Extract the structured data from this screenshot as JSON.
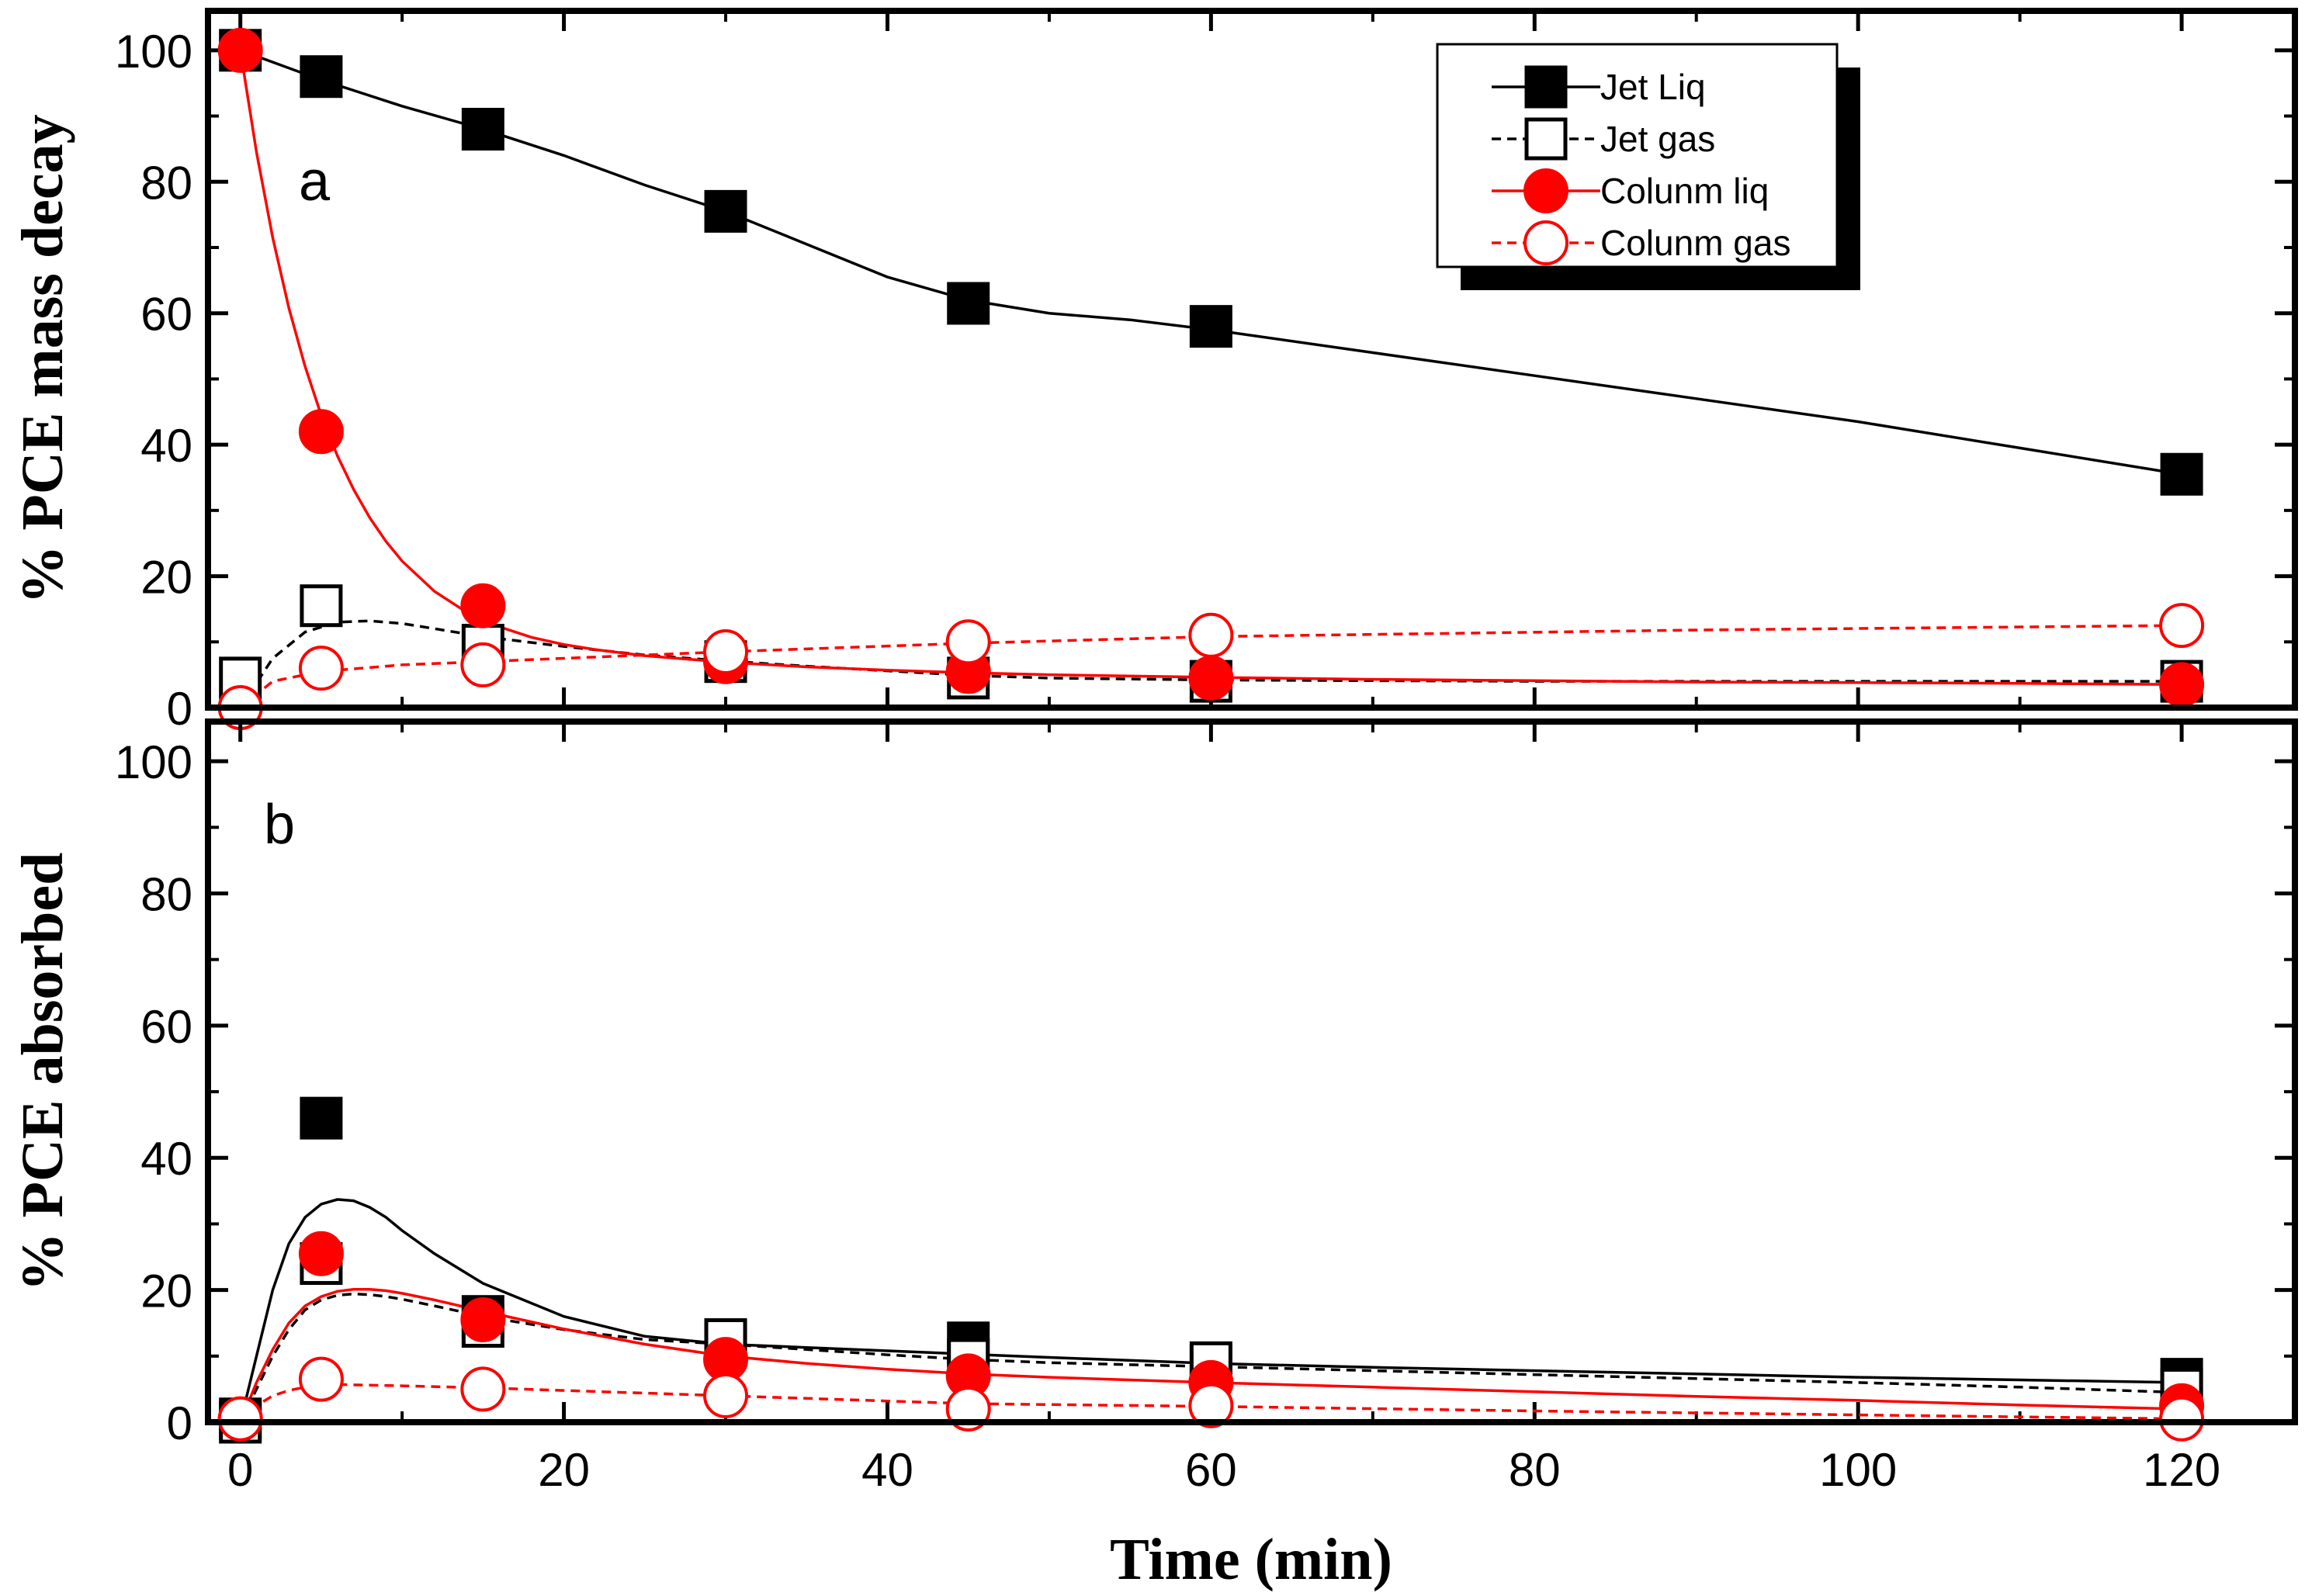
{
  "chart_data": [
    {
      "panel": "a",
      "type": "scatter",
      "panel_label": "a",
      "ylabel": "% PCE mass decay",
      "xlabel": "Time (min)",
      "xlim": [
        -2,
        127
      ],
      "ylim": [
        0,
        106
      ],
      "xticks": [
        0,
        20,
        40,
        60,
        80,
        100,
        120
      ],
      "yticks": [
        0,
        20,
        40,
        60,
        80,
        100
      ],
      "legend": {
        "placement": "top-right",
        "entries": [
          "Jet Liq",
          "Jet gas",
          "Colunm liq",
          "Colunm gas"
        ]
      },
      "series": [
        {
          "name": "Jet Liq",
          "color": "#000000",
          "marker": "square-filled",
          "line": "solid",
          "x": [
            0,
            5,
            15,
            30,
            45,
            60,
            120
          ],
          "y": [
            100,
            96,
            88,
            75.5,
            61.5,
            58,
            35.5
          ],
          "fit_x": [
            0,
            5,
            10,
            15,
            20,
            25,
            30,
            35,
            40,
            45,
            50,
            55,
            60,
            70,
            80,
            90,
            100,
            110,
            120
          ],
          "fit_y": [
            100,
            95.5,
            91.5,
            88,
            84,
            79.5,
            75.5,
            70.5,
            65.5,
            62,
            60,
            59,
            57.5,
            54,
            50.5,
            47,
            43.5,
            39.5,
            35.5
          ]
        },
        {
          "name": "Jet gas",
          "color": "#000000",
          "marker": "square-open",
          "line": "dashed",
          "x": [
            0,
            5,
            15,
            30,
            45,
            60,
            120
          ],
          "y": [
            4.5,
            15.5,
            9.5,
            7,
            4.5,
            4,
            4
          ],
          "fit_x": [
            0,
            2,
            4,
            6,
            8,
            10,
            12,
            15,
            20,
            25,
            30,
            35,
            40,
            45,
            50,
            60,
            70,
            80,
            90,
            100,
            110,
            120
          ],
          "fit_y": [
            0,
            7.5,
            11.5,
            13,
            13.2,
            12.8,
            12,
            10.8,
            9.3,
            8,
            7.1,
            6.3,
            5.6,
            4.9,
            4.5,
            4.2,
            4.1,
            4,
            4,
            4,
            4,
            4
          ]
        },
        {
          "name": "Colunm liq",
          "color": "#ff0000",
          "marker": "circle-filled",
          "line": "solid",
          "x": [
            0,
            5,
            15,
            30,
            45,
            60,
            120
          ],
          "y": [
            100,
            42,
            15.5,
            7,
            5.5,
            4.5,
            3.5
          ],
          "fit_x": [
            0,
            1,
            2,
            3,
            4,
            5,
            6,
            7,
            8,
            9,
            10,
            12,
            14,
            16,
            18,
            20,
            22,
            25,
            30,
            35,
            40,
            45,
            50,
            60,
            70,
            80,
            90,
            100,
            110,
            120
          ],
          "fit_y": [
            100,
            84.5,
            71.5,
            60.8,
            51.9,
            44.5,
            38.3,
            33.2,
            28.9,
            25.3,
            22.3,
            17.7,
            14.5,
            12.3,
            10.7,
            9.6,
            8.8,
            7.9,
            6.9,
            6.2,
            5.7,
            5.3,
            5,
            4.6,
            4.3,
            4.1,
            3.9,
            3.8,
            3.7,
            3.5
          ]
        },
        {
          "name": "Colunm gas",
          "color": "#ff0000",
          "marker": "circle-open",
          "line": "dashed",
          "x": [
            0,
            5,
            15,
            30,
            45,
            60,
            120
          ],
          "y": [
            0,
            6,
            6.5,
            8.5,
            10,
            11,
            12.5
          ],
          "fit_x": [
            0,
            2,
            5,
            10,
            15,
            20,
            30,
            45,
            60,
            90,
            120
          ],
          "fit_y": [
            0,
            4,
            5.5,
            6.5,
            7,
            7.5,
            8.5,
            9.8,
            10.8,
            11.8,
            12.5
          ]
        }
      ]
    },
    {
      "panel": "b",
      "type": "scatter",
      "panel_label": "b",
      "ylabel": "% PCE absorbed",
      "xlabel": "Time (min)",
      "xlim": [
        -2,
        127
      ],
      "ylim": [
        0,
        106
      ],
      "xticks": [
        0,
        20,
        40,
        60,
        80,
        100,
        120
      ],
      "yticks": [
        0,
        20,
        40,
        60,
        80,
        100
      ],
      "series": [
        {
          "name": "Jet Liq",
          "color": "#000000",
          "marker": "square-filled",
          "line": "solid",
          "x": [
            0,
            5,
            15,
            30,
            45,
            60,
            120
          ],
          "y": [
            0.5,
            46,
            16,
            12,
            12,
            8.5,
            6.5
          ],
          "fit_x": [
            0,
            1,
            2,
            3,
            4,
            5,
            6,
            7,
            8,
            9,
            10,
            12,
            15,
            20,
            25,
            30,
            35,
            40,
            45,
            50,
            60,
            70,
            80,
            90,
            100,
            110,
            120
          ],
          "fit_y": [
            0,
            10,
            20,
            27,
            31,
            33,
            33.7,
            33.5,
            32.5,
            31,
            29,
            25.5,
            21,
            16,
            13,
            11.8,
            11.3,
            10.8,
            10.3,
            9.8,
            8.9,
            8.3,
            7.8,
            7.3,
            6.8,
            6.4,
            6
          ]
        },
        {
          "name": "Jet gas",
          "color": "#000000",
          "marker": "square-open",
          "line": "dashed",
          "x": [
            0,
            5,
            15,
            30,
            45,
            60,
            120
          ],
          "y": [
            0,
            24,
            14.5,
            12.5,
            9.5,
            9,
            5
          ],
          "fit_x": [
            0,
            1,
            2,
            3,
            4,
            5,
            6,
            7,
            8,
            9,
            10,
            12,
            15,
            20,
            25,
            30,
            35,
            40,
            45,
            50,
            60,
            70,
            80,
            90,
            100,
            110,
            120
          ],
          "fit_y": [
            0,
            5,
            10,
            14,
            17,
            18.5,
            19.2,
            19.4,
            19.3,
            19,
            18.6,
            17.6,
            16,
            14,
            12.5,
            11.8,
            11,
            10.2,
            9.5,
            9,
            8.4,
            7.8,
            7.2,
            6.6,
            6,
            5.3,
            4.5
          ]
        },
        {
          "name": "Colunm liq",
          "color": "#ff0000",
          "marker": "circle-filled",
          "line": "solid",
          "x": [
            0,
            5,
            15,
            30,
            45,
            60,
            120
          ],
          "y": [
            0.5,
            25.5,
            15.5,
            9.5,
            7,
            6,
            2.5
          ],
          "fit_x": [
            0,
            1,
            2,
            3,
            4,
            5,
            6,
            7,
            8,
            9,
            10,
            12,
            15,
            20,
            25,
            30,
            35,
            40,
            45,
            50,
            60,
            70,
            80,
            90,
            100,
            110,
            120
          ],
          "fit_y": [
            0,
            6,
            11,
            15,
            17.6,
            19,
            19.8,
            20.1,
            20.1,
            19.9,
            19.5,
            18.5,
            16.8,
            14.1,
            11.8,
            10,
            8.9,
            8,
            7.3,
            6.8,
            6,
            5.3,
            4.6,
            3.9,
            3.3,
            2.6,
            2
          ]
        },
        {
          "name": "Colunm gas",
          "color": "#ff0000",
          "marker": "circle-open",
          "line": "dashed",
          "x": [
            0,
            5,
            15,
            30,
            45,
            60,
            120
          ],
          "y": [
            0.5,
            6.5,
            5,
            4,
            2,
            2.5,
            0.5
          ],
          "fit_x": [
            0,
            1,
            2,
            3,
            4,
            5,
            6,
            8,
            10,
            15,
            20,
            30,
            40,
            45,
            60,
            80,
            100,
            120
          ],
          "fit_y": [
            0,
            2.5,
            4,
            4.8,
            5.3,
            5.6,
            5.7,
            5.6,
            5.5,
            5.2,
            4.8,
            4,
            3.2,
            2.8,
            2.4,
            1.7,
            1.1,
            0.5
          ]
        }
      ]
    }
  ]
}
